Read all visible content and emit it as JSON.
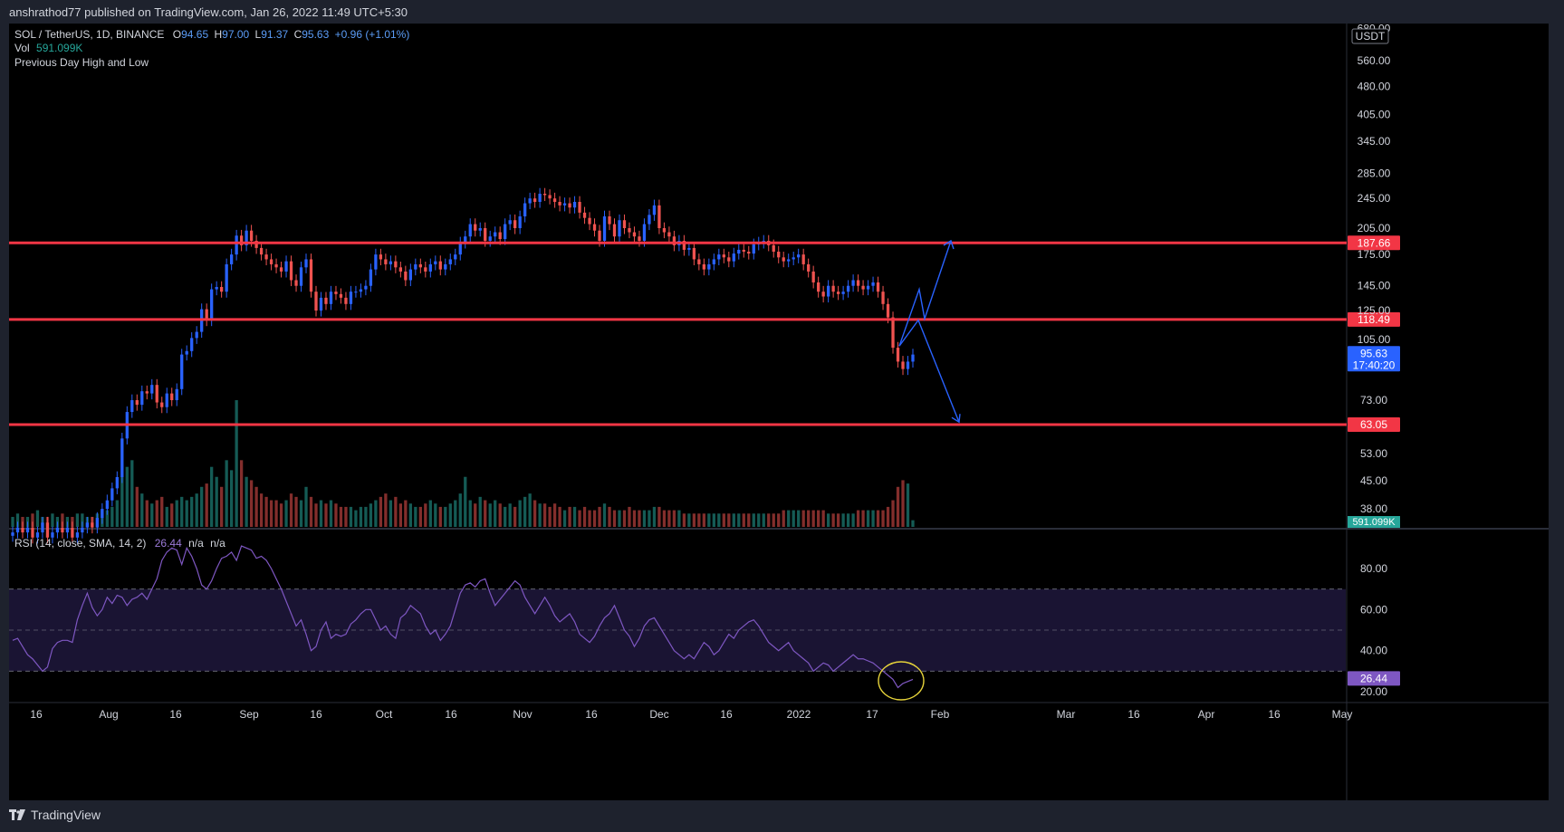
{
  "header": {
    "published_text": "anshrathod77 published on TradingView.com, Jan 26, 2022 11:49 UTC+5:30"
  },
  "footer": {
    "brand": "TradingView"
  },
  "legend": {
    "symbol": "SOL / TetherUS, 1D, BINANCE",
    "o_label": "O",
    "o_value": "94.65",
    "h_label": "H",
    "h_value": "97.00",
    "l_label": "L",
    "l_value": "91.37",
    "c_label": "C",
    "c_value": "95.63",
    "change": "+0.96 (+1.01%)",
    "vol_label": "Vol",
    "vol_value": "591.099K",
    "indicator": "Previous Day High and Low",
    "rsi_label": "RSI (14, close, SMA, 14, 2)",
    "rsi_value": "26.44",
    "rsi_na1": "n/a",
    "rsi_na2": "n/a"
  },
  "colors": {
    "up": "#26a69a",
    "down": "#ef5350",
    "levels": "#f23645",
    "drawing": "#2962ff",
    "rsi_line": "#7e57c2",
    "rsi_band": "#1a1433",
    "ellipse": "#e6d33a",
    "last_price_bg": "#2962ff"
  },
  "chart_data": [
    {
      "type": "candlestick",
      "scale": "log",
      "currency": "USDT",
      "price_axis_ticks": [
        "680.00",
        "560.00",
        "480.00",
        "405.00",
        "345.00",
        "285.00",
        "245.00",
        "205.00",
        "175.00",
        "145.00",
        "125.00",
        "105.00",
        "73.00",
        "53.00",
        "45.00",
        "38.00"
      ],
      "time_axis_ticks": [
        "16",
        "Aug",
        "16",
        "Sep",
        "16",
        "Oct",
        "16",
        "Nov",
        "16",
        "Dec",
        "16",
        "2022",
        "17",
        "Feb",
        "Mar",
        "16",
        "Apr",
        "16",
        "May"
      ],
      "horizontal_levels": [
        {
          "price": 187.66,
          "label": "187.66"
        },
        {
          "price": 118.49,
          "label": "118.49"
        },
        {
          "price": 63.05,
          "label": "63.05"
        }
      ],
      "last_price": {
        "price": 95.63,
        "label": "95.63",
        "countdown": "17:40:20"
      },
      "volume_label": "591.099K",
      "closes": [
        33,
        34,
        33,
        34,
        32,
        33,
        35,
        32,
        33,
        34,
        33,
        34,
        32,
        33,
        34,
        35,
        34,
        36,
        38,
        40,
        43,
        46,
        58,
        68,
        73,
        71,
        77,
        76,
        80,
        72,
        70,
        76,
        73,
        78,
        96,
        98,
        106,
        110,
        126,
        118,
        142,
        144,
        140,
        165,
        175,
        196,
        185,
        202,
        190,
        182,
        175,
        170,
        165,
        162,
        158,
        168,
        150,
        145,
        162,
        170,
        140,
        125,
        135,
        130,
        140,
        138,
        135,
        130,
        140,
        140,
        142,
        145,
        160,
        175,
        170,
        165,
        168,
        162,
        158,
        150,
        160,
        165,
        162,
        158,
        165,
        168,
        160,
        165,
        170,
        175,
        188,
        195,
        210,
        202,
        205,
        190,
        195,
        200,
        192,
        210,
        215,
        205,
        220,
        238,
        245,
        240,
        252,
        250,
        245,
        240,
        235,
        238,
        232,
        240,
        225,
        218,
        210,
        202,
        190,
        220,
        210,
        195,
        215,
        205,
        200,
        195,
        190,
        210,
        222,
        235,
        205,
        200,
        195,
        185,
        190,
        180,
        182,
        170,
        165,
        160,
        165,
        170,
        175,
        172,
        168,
        176,
        180,
        178,
        176,
        186,
        188,
        190,
        185,
        178,
        172,
        168,
        170,
        172,
        175,
        165,
        158,
        148,
        140,
        136,
        145,
        140,
        138,
        140,
        145,
        150,
        145,
        142,
        145,
        148,
        140,
        130,
        120,
        100,
        92,
        88,
        92,
        96
      ],
      "volume_levels": [
        3,
        4,
        3,
        3,
        4,
        5,
        3,
        3,
        4,
        3,
        4,
        3,
        3,
        4,
        4,
        3,
        3,
        4,
        5,
        5,
        6,
        8,
        15,
        18,
        20,
        12,
        10,
        8,
        7,
        8,
        9,
        6,
        7,
        8,
        9,
        8,
        9,
        10,
        12,
        13,
        18,
        15,
        12,
        20,
        17,
        38,
        20,
        15,
        14,
        12,
        10,
        9,
        8,
        8,
        7,
        8,
        10,
        9,
        8,
        12,
        9,
        7,
        8,
        7,
        8,
        7,
        6,
        6,
        6,
        5,
        6,
        6,
        7,
        8,
        9,
        10,
        8,
        9,
        7,
        8,
        7,
        6,
        6,
        7,
        8,
        7,
        6,
        6,
        7,
        8,
        10,
        15,
        8,
        7,
        9,
        8,
        7,
        8,
        7,
        6,
        7,
        6,
        8,
        9,
        10,
        8,
        7,
        7,
        6,
        7,
        6,
        5,
        6,
        6,
        5,
        6,
        5,
        5,
        6,
        7,
        6,
        5,
        5,
        5,
        6,
        5,
        5,
        5,
        5,
        6,
        6,
        5,
        5,
        5,
        5,
        4,
        4,
        4,
        4,
        4,
        4,
        4,
        4,
        4,
        4,
        4,
        4,
        4,
        4,
        4,
        4,
        4,
        4,
        4,
        4,
        5,
        5,
        5,
        5,
        5,
        5,
        5,
        5,
        5,
        4,
        4,
        4,
        4,
        4,
        4,
        5,
        5,
        5,
        5,
        5,
        5,
        6,
        8,
        12,
        14,
        13,
        2
      ]
    },
    {
      "type": "line",
      "name": "RSI (14, close, SMA, 14, 2)",
      "y_axis_ticks": [
        "80.00",
        "60.00",
        "40.00",
        "20.00"
      ],
      "bands": [
        70,
        50,
        30
      ],
      "last_value": {
        "value": 26.44,
        "label": "26.44"
      },
      "values": [
        45,
        46,
        42,
        38,
        36,
        33,
        30,
        32,
        41,
        44,
        45,
        45,
        44,
        55,
        62,
        68,
        61,
        57,
        60,
        66,
        63,
        67,
        66,
        62,
        65,
        66,
        68,
        65,
        70,
        75,
        84,
        88,
        90,
        89,
        82,
        90,
        86,
        80,
        72,
        70,
        74,
        80,
        85,
        86,
        88,
        84,
        91,
        90,
        89,
        85,
        86,
        84,
        80,
        75,
        70,
        64,
        58,
        52,
        55,
        48,
        40,
        42,
        50,
        54,
        46,
        48,
        47,
        48,
        53,
        55,
        58,
        60,
        60,
        55,
        50,
        52,
        48,
        46,
        56,
        58,
        62,
        60,
        58,
        52,
        48,
        50,
        45,
        48,
        52,
        60,
        68,
        72,
        73,
        71,
        74,
        75,
        68,
        62,
        65,
        68,
        71,
        74,
        72,
        66,
        62,
        58,
        62,
        66,
        62,
        57,
        54,
        56,
        58,
        54,
        48,
        46,
        44,
        47,
        52,
        56,
        58,
        62,
        56,
        50,
        47,
        42,
        46,
        52,
        55,
        56,
        52,
        48,
        44,
        40,
        38,
        36,
        38,
        36,
        40,
        44,
        42,
        38,
        40,
        44,
        48,
        46,
        50,
        52,
        54,
        55,
        52,
        48,
        44,
        42,
        40,
        42,
        44,
        40,
        38,
        36,
        34,
        30,
        32,
        34,
        33,
        30,
        32,
        34,
        36,
        38,
        36,
        36,
        35,
        34,
        32,
        30,
        28,
        26,
        22,
        24,
        25,
        26
      ]
    }
  ]
}
